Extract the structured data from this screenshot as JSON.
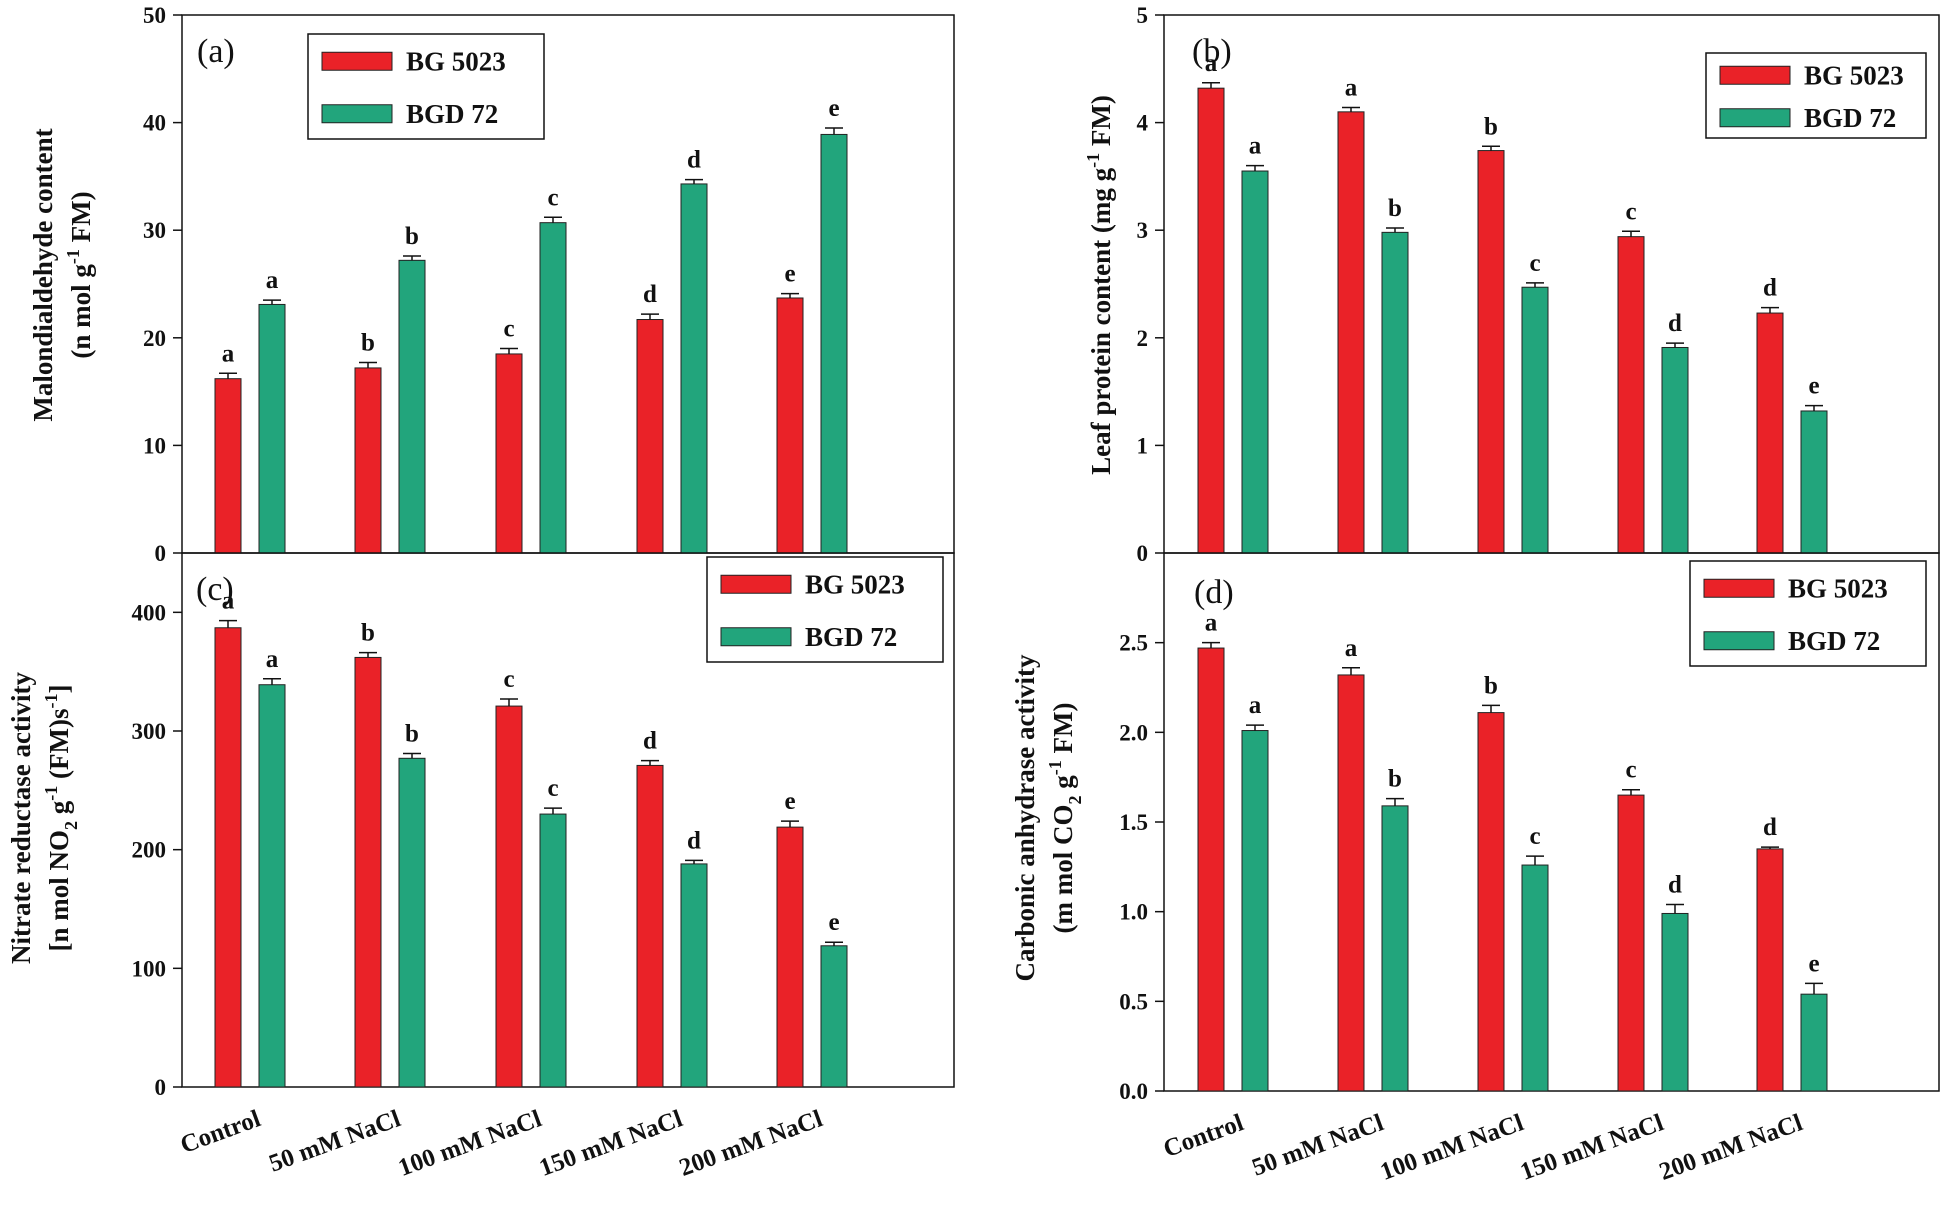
{
  "colors": {
    "series1": "#ea2228",
    "series2": "#22a57c",
    "axis": "#111111"
  },
  "chart_data": [
    {
      "type": "bar",
      "panel": "(a)",
      "ylabel_line1": "Malondialdehyde content",
      "ylabel_line2_pre": "(n mol g",
      "ylabel_line2_sup": "-1",
      "ylabel_line2_post": " FM)",
      "ylim": [
        0,
        50
      ],
      "yticks": [
        0,
        10,
        20,
        30,
        40,
        50
      ],
      "ytick_labels": [
        "0",
        "10",
        "20",
        "30",
        "40",
        "50"
      ],
      "legend_position": "top-left",
      "categories": [
        "Control",
        "50 mM NaCl",
        "100 mM NaCl",
        "150 mM NaCl",
        "200 mM NaCl"
      ],
      "series": [
        {
          "name": "BG 5023",
          "values": [
            16.2,
            17.2,
            18.5,
            21.7,
            23.7
          ],
          "errors": [
            0.5,
            0.5,
            0.5,
            0.5,
            0.4
          ],
          "letters": [
            "a",
            "b",
            "c",
            "d",
            "e"
          ]
        },
        {
          "name": "BGD 72",
          "values": [
            23.1,
            27.2,
            30.7,
            34.3,
            38.9
          ],
          "errors": [
            0.4,
            0.4,
            0.5,
            0.4,
            0.6
          ],
          "letters": [
            "a",
            "b",
            "c",
            "d",
            "e"
          ]
        }
      ]
    },
    {
      "type": "bar",
      "panel": "(b)",
      "ylabel_line1": "Leaf protein content (mg g",
      "ylabel_line1_sup": "-1",
      "ylabel_line1_post": " FM)",
      "ylim": [
        0,
        5
      ],
      "yticks": [
        0,
        1,
        2,
        3,
        4,
        5
      ],
      "ytick_labels": [
        "0",
        "1",
        "2",
        "3",
        "4",
        "5"
      ],
      "legend_position": "top-right",
      "categories": [
        "Control",
        "50 mM NaCl",
        "100 mM NaCl",
        "150 mM NaCl",
        "200 mM NaCl"
      ],
      "series": [
        {
          "name": "BG 5023",
          "values": [
            4.32,
            4.1,
            3.74,
            2.94,
            2.23
          ],
          "errors": [
            0.05,
            0.04,
            0.04,
            0.05,
            0.05
          ],
          "letters": [
            "a",
            "a",
            "b",
            "c",
            "d"
          ]
        },
        {
          "name": "BGD 72",
          "values": [
            3.55,
            2.98,
            2.47,
            1.91,
            1.32
          ],
          "errors": [
            0.05,
            0.04,
            0.04,
            0.04,
            0.05
          ],
          "letters": [
            "a",
            "b",
            "c",
            "d",
            "e"
          ]
        }
      ]
    },
    {
      "type": "bar",
      "panel": "(c)",
      "ylabel_line1": "Nitrate reductase activity",
      "ylabel_line2_pre": "[n mol NO",
      "ylabel_line2_sub": "2",
      "ylabel_line2_mid": " g",
      "ylabel_line2_sup": "-1",
      "ylabel_line2_post": " (FM)s",
      "ylabel_line2_sup2": "-1",
      "ylabel_line2_end": "]",
      "ylim": [
        0,
        450
      ],
      "yticks": [
        0,
        100,
        200,
        300,
        400
      ],
      "ytick_labels": [
        "0",
        "100",
        "200",
        "300",
        "400"
      ],
      "legend_position": "top-right",
      "categories": [
        "Control",
        "50 mM NaCl",
        "100 mM NaCl",
        "150 mM NaCl",
        "200 mM NaCl"
      ],
      "series": [
        {
          "name": "BG 5023",
          "values": [
            387,
            362,
            321,
            271,
            219
          ],
          "errors": [
            6,
            4,
            6,
            4,
            5
          ],
          "letters": [
            "a",
            "b",
            "c",
            "d",
            "e"
          ]
        },
        {
          "name": "BGD 72",
          "values": [
            339,
            277,
            230,
            188,
            119
          ],
          "errors": [
            5,
            4,
            5,
            3,
            3
          ],
          "letters": [
            "a",
            "b",
            "c",
            "d",
            "e"
          ]
        }
      ]
    },
    {
      "type": "bar",
      "panel": "(d)",
      "ylabel_line1": "Carbonic anhydrase activity",
      "ylabel_line2_pre": "(m mol CO",
      "ylabel_line2_sub": "2",
      "ylabel_line2_mid": " g",
      "ylabel_line2_sup": "-1",
      "ylabel_line2_post": " FM)",
      "ylim": [
        0,
        3
      ],
      "yticks": [
        0,
        0.5,
        1,
        1.5,
        2,
        2.5
      ],
      "ytick_labels": [
        "0.0",
        "0.5",
        "1.0",
        "1.5",
        "2.0",
        "2.5"
      ],
      "legend_position": "top-right",
      "categories": [
        "Control",
        "50 mM NaCl",
        "100 mM NaCl",
        "150 mM NaCl",
        "200 mM NaCl"
      ],
      "series": [
        {
          "name": "BG 5023",
          "values": [
            2.47,
            2.32,
            2.11,
            1.65,
            1.35
          ],
          "errors": [
            0.03,
            0.04,
            0.04,
            0.03,
            0.01
          ],
          "letters": [
            "a",
            "a",
            "b",
            "c",
            "d"
          ]
        },
        {
          "name": "BGD 72",
          "values": [
            2.01,
            1.59,
            1.26,
            0.99,
            0.54
          ],
          "errors": [
            0.03,
            0.04,
            0.05,
            0.05,
            0.06
          ],
          "letters": [
            "a",
            "b",
            "c",
            "d",
            "e"
          ]
        }
      ]
    }
  ]
}
